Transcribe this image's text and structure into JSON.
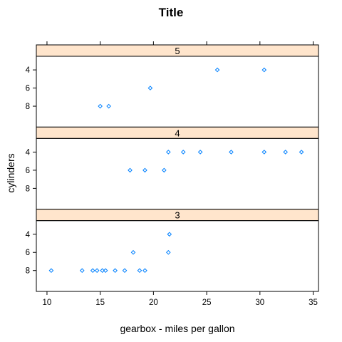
{
  "chart_data": {
    "type": "scatter",
    "title": "Title",
    "xlabel": "gearbox - miles per gallon",
    "ylabel": "cylinders",
    "xlim": [
      9,
      35.5
    ],
    "xticks": [
      10,
      15,
      20,
      25,
      30,
      35
    ],
    "ycategories": [
      "4",
      "6",
      "8"
    ],
    "strip_color": "#ffe5cc",
    "point_color": "#0080ff",
    "panels": [
      {
        "strip": "5",
        "points": [
          {
            "x": 26.0,
            "y": "4"
          },
          {
            "x": 30.4,
            "y": "4"
          },
          {
            "x": 19.7,
            "y": "6"
          },
          {
            "x": 15.0,
            "y": "8"
          },
          {
            "x": 15.8,
            "y": "8"
          }
        ]
      },
      {
        "strip": "4",
        "points": [
          {
            "x": 21.4,
            "y": "4"
          },
          {
            "x": 22.8,
            "y": "4"
          },
          {
            "x": 24.4,
            "y": "4"
          },
          {
            "x": 27.3,
            "y": "4"
          },
          {
            "x": 30.4,
            "y": "4"
          },
          {
            "x": 32.4,
            "y": "4"
          },
          {
            "x": 33.9,
            "y": "4"
          },
          {
            "x": 17.8,
            "y": "6"
          },
          {
            "x": 19.2,
            "y": "6"
          },
          {
            "x": 21.0,
            "y": "6"
          }
        ]
      },
      {
        "strip": "3",
        "points": [
          {
            "x": 21.5,
            "y": "4"
          },
          {
            "x": 18.1,
            "y": "6"
          },
          {
            "x": 21.4,
            "y": "6"
          },
          {
            "x": 10.4,
            "y": "8"
          },
          {
            "x": 13.3,
            "y": "8"
          },
          {
            "x": 14.3,
            "y": "8"
          },
          {
            "x": 14.7,
            "y": "8"
          },
          {
            "x": 15.2,
            "y": "8"
          },
          {
            "x": 15.5,
            "y": "8"
          },
          {
            "x": 16.4,
            "y": "8"
          },
          {
            "x": 17.3,
            "y": "8"
          },
          {
            "x": 18.7,
            "y": "8"
          },
          {
            "x": 19.2,
            "y": "8"
          }
        ]
      }
    ]
  }
}
